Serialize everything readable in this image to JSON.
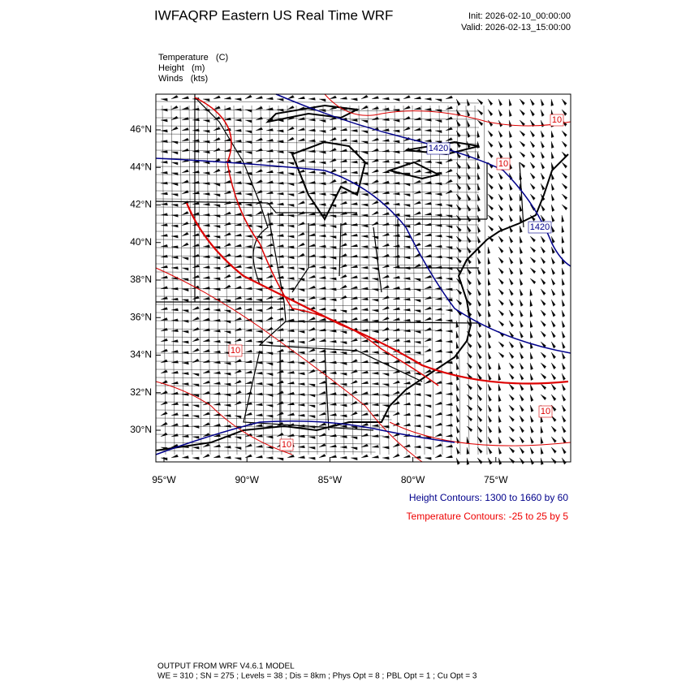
{
  "header": {
    "title": "IWFAQRP Eastern US Real Time WRF",
    "init": "Init: 2026-02-10_00:00:00",
    "valid": "Valid: 2026-02-13_15:00:00"
  },
  "fields": [
    "Temperature   (C)",
    "Height   (m)",
    "Winds   (kts)"
  ],
  "map": {
    "lat_labels": [
      "46°N",
      "44°N",
      "42°N",
      "40°N",
      "38°N",
      "36°N",
      "34°N",
      "32°N",
      "30°N"
    ],
    "lon_labels": [
      "95°W",
      "90°W",
      "85°W",
      "80°W",
      "75°W"
    ],
    "height_contour_labels": [
      "1420",
      "1420"
    ],
    "temperature_contour_labels": [
      "10",
      "10",
      "10",
      "10",
      "10"
    ]
  },
  "legend": [
    "Height Contours: 1300 to 1660 by 60",
    "Temperature Contours: -25 to 25 by 5"
  ],
  "footer": [
    "OUTPUT FROM WRF V4.6.1 MODEL",
    "WE = 310 ; SN = 275 ; Levels = 38 ; Dis = 8km ; Phys Opt = 8 ; PBL Opt = 1 ; Cu Opt = 3"
  ]
}
